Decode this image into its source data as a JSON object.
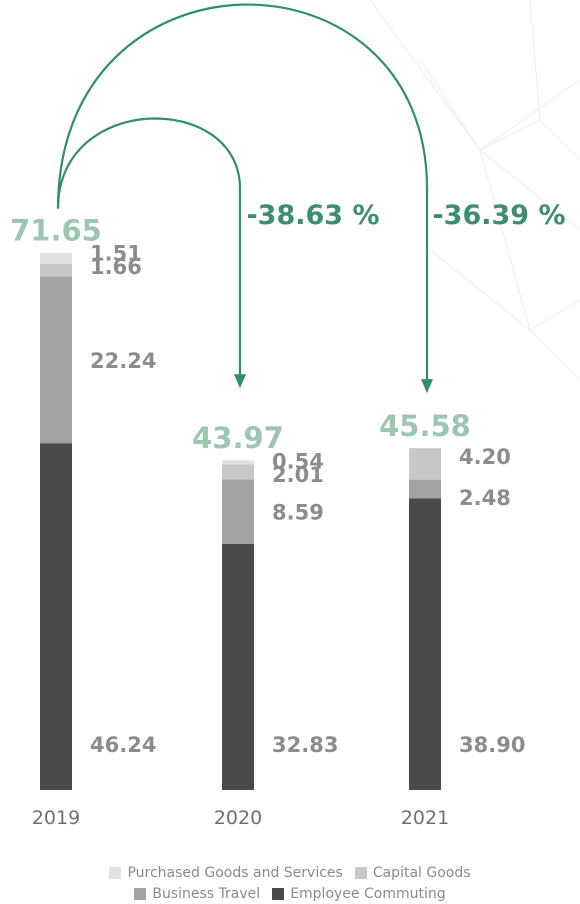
{
  "chart_data": {
    "type": "bar",
    "stacked": true,
    "categories": [
      "2019",
      "2020",
      "2021"
    ],
    "totals": [
      "71.65",
      "43.97",
      "45.58"
    ],
    "changes": [
      "-38.63 %",
      "-36.39 %"
    ],
    "series": [
      {
        "name": "Employee Commuting",
        "color": "#4a4a4c",
        "values": [
          46.24,
          32.83,
          38.9
        ],
        "labels": [
          "46.24",
          "32.83",
          "38.90"
        ]
      },
      {
        "name": "Business Travel",
        "color": "#a3a3a6",
        "values": [
          22.24,
          8.59,
          2.48
        ],
        "labels": [
          "22.24",
          "8.59",
          "2.48"
        ]
      },
      {
        "name": "Capital Goods",
        "color": "#c7c8ca",
        "values": [
          1.66,
          2.01,
          4.2
        ],
        "labels": [
          "1.66",
          "2.01",
          "4.20"
        ]
      },
      {
        "name": "Purchased Goods and Services",
        "color": "#e1e2e3",
        "values": [
          1.51,
          0.54,
          0.0
        ],
        "labels": [
          "1.51",
          "0.54",
          ""
        ]
      }
    ],
    "legend_order": [
      "Purchased Goods and Services",
      "Capital Goods",
      "Business Travel",
      "Employee Commuting"
    ],
    "legend_placement": "bottom",
    "grid": false,
    "colors": {
      "total": "#9cc5b2",
      "change": "#3b8f6e",
      "arrow": "#2f8f68",
      "segment_label": "#8c8c8c",
      "year": "#707070"
    }
  }
}
